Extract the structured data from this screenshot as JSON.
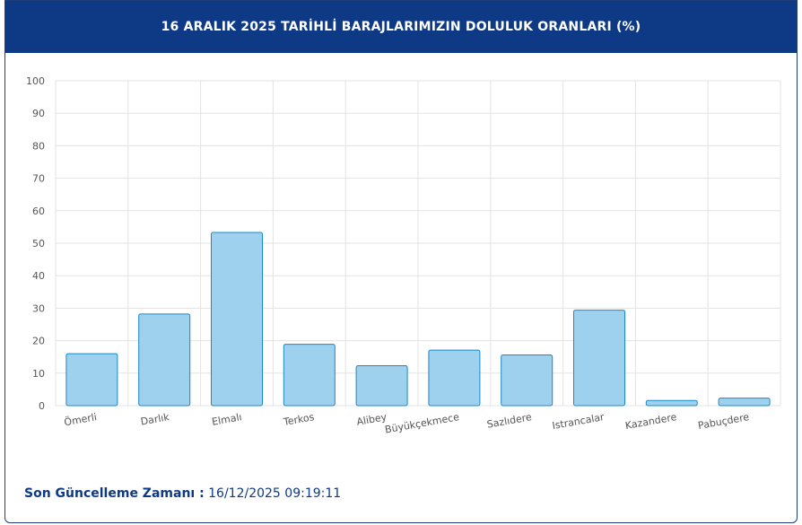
{
  "header": {
    "title": "16 ARALIK 2025 TARİHLİ BARAJLARIMIZIN DOLULUK ORANLARI (%)"
  },
  "footer": {
    "label": "Son Güncelleme Zamanı :",
    "value": "16/12/2025 09:19:11"
  },
  "colors": {
    "header_bg": "#0e3a85",
    "bar_fill": "#9dd1ee",
    "bar_stroke": "#1a88c9",
    "grid": "#e3e3e3"
  },
  "chart_data": {
    "type": "bar",
    "categories": [
      "Ömerli",
      "Darlık",
      "Elmalı",
      "Terkos",
      "Alibey",
      "Büyükçekmece",
      "Sazlıdere",
      "Istrancalar",
      "Kazandere",
      "Pabuçdere"
    ],
    "values": [
      16.0,
      28.2,
      53.3,
      18.9,
      12.3,
      17.1,
      15.6,
      29.4,
      1.6,
      2.3
    ],
    "ylim": [
      0,
      100
    ],
    "yticks": [
      "0",
      "10",
      "20",
      "30",
      "40",
      "50",
      "60",
      "70",
      "80",
      "90",
      "100"
    ],
    "grid": true
  }
}
